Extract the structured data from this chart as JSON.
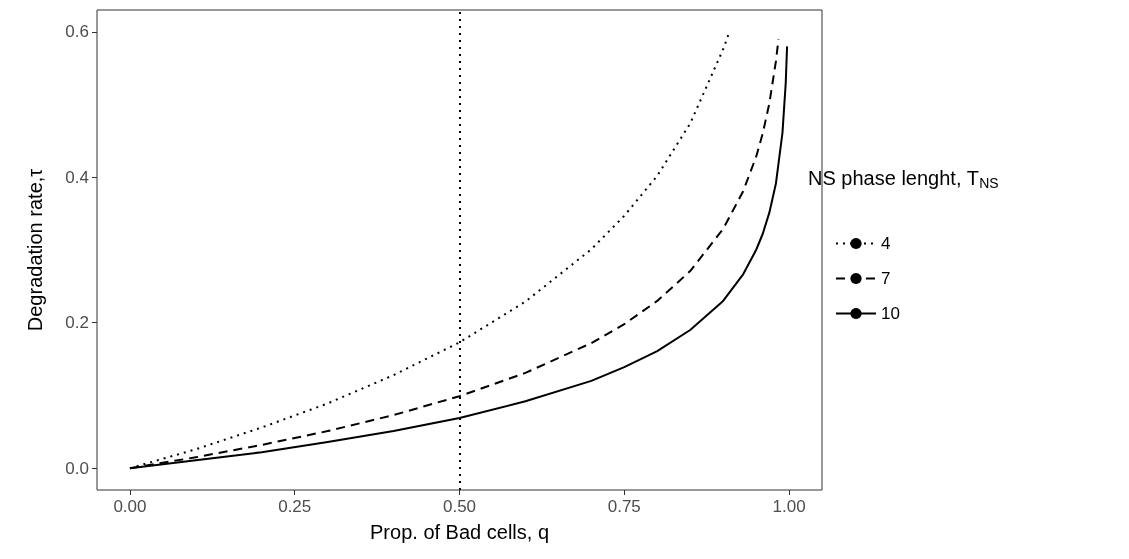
{
  "chart_data": {
    "type": "line",
    "xlabel": "Prop. of Bad cells, q",
    "ylabel": "Degradation rate,τ",
    "legend_title": "NS phase lenght, T$_{NS}$",
    "xlim": [
      -0.05,
      1.05
    ],
    "ylim": [
      -0.03,
      0.63
    ],
    "xticks": [
      {
        "value": 0,
        "label": "0.00"
      },
      {
        "value": 0.25,
        "label": "0.25"
      },
      {
        "value": 0.5,
        "label": "0.50"
      },
      {
        "value": 0.75,
        "label": "0.75"
      },
      {
        "value": 1,
        "label": "1.00"
      }
    ],
    "yticks": [
      {
        "value": 0,
        "label": "0.0"
      },
      {
        "value": 0.2,
        "label": "0.2"
      },
      {
        "value": 0.4,
        "label": "0.4"
      },
      {
        "value": 0.6,
        "label": "0.6"
      }
    ],
    "grid": false,
    "legend": "right",
    "marker": "none",
    "ref_lines": [
      {
        "axis": "x",
        "value": 0.5,
        "label": null,
        "color": "#000000",
        "line_style": "dotted"
      }
    ],
    "series": [
      {
        "name": "4",
        "color": "#000000",
        "line_style": "dotted",
        "x": [
          0,
          0.1,
          0.2,
          0.3,
          0.4,
          0.5,
          0.6,
          0.7,
          0.75,
          0.8,
          0.85,
          0.9,
          0.908
        ],
        "values": [
          0,
          0.026,
          0.056,
          0.089,
          0.128,
          0.173,
          0.229,
          0.301,
          0.347,
          0.402,
          0.474,
          0.576,
          0.596
        ]
      },
      {
        "name": "7",
        "color": "#000000",
        "line_style": "dashed",
        "x": [
          0,
          0.1,
          0.2,
          0.3,
          0.4,
          0.5,
          0.6,
          0.7,
          0.75,
          0.8,
          0.85,
          0.9,
          0.93,
          0.95,
          0.96,
          0.97,
          0.98,
          0.984
        ],
        "values": [
          0,
          0.015,
          0.032,
          0.051,
          0.073,
          0.099,
          0.131,
          0.172,
          0.198,
          0.23,
          0.271,
          0.329,
          0.38,
          0.428,
          0.46,
          0.501,
          0.559,
          0.59
        ]
      },
      {
        "name": "10",
        "color": "#000000",
        "line_style": "solid",
        "x": [
          0,
          0.1,
          0.2,
          0.3,
          0.4,
          0.5,
          0.6,
          0.7,
          0.75,
          0.8,
          0.85,
          0.9,
          0.93,
          0.95,
          0.96,
          0.97,
          0.98,
          0.99,
          0.995,
          0.997
        ],
        "values": [
          0,
          0.011,
          0.022,
          0.036,
          0.051,
          0.069,
          0.092,
          0.12,
          0.139,
          0.161,
          0.19,
          0.23,
          0.266,
          0.3,
          0.322,
          0.351,
          0.391,
          0.461,
          0.53,
          0.58
        ]
      }
    ]
  }
}
